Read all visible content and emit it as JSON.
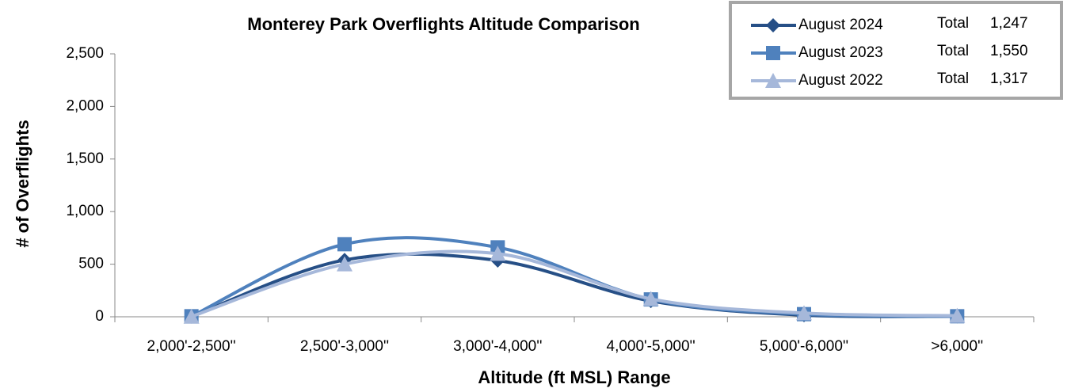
{
  "chart_data": {
    "type": "line",
    "smooth": true,
    "title": "Monterey Park Overflights Altitude Comparison",
    "x_label": "Altitude (ft MSL) Range",
    "y_label": "# of Overflights",
    "categories": [
      "2,000'-2,500''",
      "2,500'-3,000''",
      "3,000'-4,000''",
      "4,000'-5,000''",
      "5,000'-6,000''",
      ">6,000''"
    ],
    "series": [
      {
        "name": "August 2024",
        "color": "#264f86",
        "marker": "diamond",
        "values": [
          2,
          540,
          535,
          150,
          15,
          5
        ],
        "total_text": "Total",
        "total": {
          "value": 1247,
          "label": "1,247"
        }
      },
      {
        "name": "August 2023",
        "color": "#4f81bd",
        "marker": "square",
        "values": [
          5,
          690,
          660,
          165,
          25,
          5
        ],
        "total_text": "Total",
        "total": {
          "value": 1550,
          "label": "1,550"
        }
      },
      {
        "name": "August 2022",
        "color": "#a6b8da",
        "marker": "triangle",
        "values": [
          2,
          500,
          600,
          170,
          35,
          10
        ],
        "total_text": "Total",
        "total": {
          "value": 1317,
          "label": "1,317"
        }
      }
    ],
    "ylim": [
      0,
      2500
    ],
    "yticks": [
      0,
      {
        "value": 500,
        "label": "500"
      },
      {
        "value": 1000,
        "label": "1,000"
      },
      {
        "value": 1500,
        "label": "1,500"
      },
      {
        "value": 2000,
        "label": "2,000"
      },
      {
        "value": 2500,
        "label": "2,500"
      }
    ],
    "legend": "top-right"
  }
}
